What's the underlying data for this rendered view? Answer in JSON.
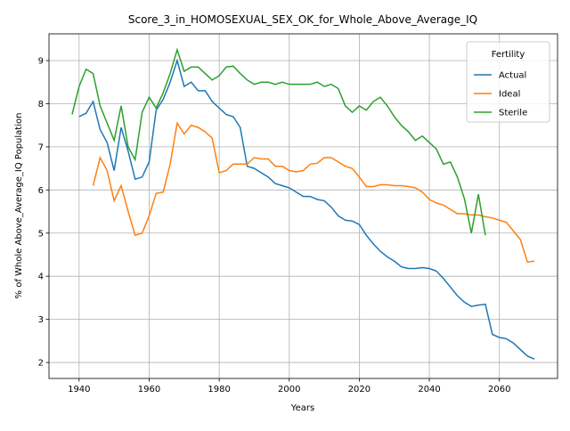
{
  "chart_data": {
    "type": "line",
    "title": "Score_3_in_HOMOSEXUAL_SEX_OK_for_Whole_Above_Average_IQ",
    "xlabel": "Years",
    "ylabel": "% of Whole Above_Average_IQ Population",
    "legend_title": "Fertility",
    "legend": "upper right",
    "grid": true,
    "x": [
      1938,
      1940,
      1942,
      1944,
      1946,
      1948,
      1950,
      1952,
      1954,
      1956,
      1958,
      1960,
      1962,
      1964,
      1966,
      1968,
      1970,
      1972,
      1974,
      1976,
      1978,
      1980,
      1982,
      1984,
      1986,
      1988,
      1990,
      1992,
      1994,
      1996,
      1998,
      2000,
      2002,
      2004,
      2006,
      2008,
      2010,
      2012,
      2014,
      2016,
      2018,
      2020,
      2022,
      2024,
      2026,
      2028,
      2030,
      2032,
      2034,
      2036,
      2038,
      2040,
      2042,
      2044,
      2046,
      2048,
      2050,
      2052,
      2054,
      2056,
      2058,
      2060,
      2062,
      2064,
      2066,
      2068,
      2070
    ],
    "series": [
      {
        "name": "Actual",
        "color": "#1f77b4",
        "values": [
          null,
          7.7,
          7.78,
          8.05,
          7.4,
          7.1,
          6.45,
          7.45,
          6.9,
          6.25,
          6.3,
          6.65,
          7.85,
          8.1,
          8.5,
          9.0,
          8.4,
          8.5,
          8.3,
          8.3,
          8.05,
          7.9,
          7.75,
          7.7,
          7.45,
          6.55,
          6.5,
          6.4,
          6.3,
          6.15,
          6.1,
          6.05,
          5.95,
          5.85,
          5.85,
          5.78,
          5.75,
          5.6,
          5.4,
          5.3,
          5.28,
          5.2,
          4.95,
          4.75,
          4.58,
          4.45,
          4.35,
          4.22,
          4.18,
          4.18,
          4.2,
          4.18,
          4.12,
          3.95,
          3.75,
          3.55,
          3.4,
          3.3,
          3.33,
          3.35,
          2.65,
          2.58,
          2.55,
          2.45,
          2.3,
          2.15,
          2.08
        ]
      },
      {
        "name": "Ideal",
        "color": "#ff7f0e",
        "values": [
          null,
          null,
          null,
          6.1,
          6.75,
          6.45,
          5.75,
          6.1,
          5.5,
          4.95,
          5.0,
          5.4,
          5.92,
          5.95,
          6.6,
          7.55,
          7.3,
          7.5,
          7.45,
          7.35,
          7.2,
          6.4,
          6.45,
          6.6,
          6.6,
          6.6,
          6.75,
          6.72,
          6.72,
          6.55,
          6.55,
          6.45,
          6.42,
          6.45,
          6.6,
          6.62,
          6.75,
          6.75,
          6.65,
          6.55,
          6.5,
          6.3,
          6.08,
          6.08,
          6.12,
          6.12,
          6.1,
          6.1,
          6.08,
          6.05,
          5.95,
          5.78,
          5.7,
          5.65,
          5.55,
          5.45,
          5.45,
          5.42,
          5.42,
          5.38,
          5.35,
          5.3,
          5.25,
          5.05,
          4.85,
          4.33,
          4.35
        ]
      },
      {
        "name": "Sterile",
        "color": "#2ca02c",
        "values": [
          7.75,
          8.4,
          8.8,
          8.7,
          7.95,
          7.55,
          7.15,
          7.95,
          7.0,
          6.7,
          7.8,
          8.15,
          7.9,
          8.25,
          8.7,
          9.25,
          8.75,
          8.85,
          8.85,
          8.7,
          8.55,
          8.65,
          8.85,
          8.87,
          8.7,
          8.55,
          8.45,
          8.5,
          8.5,
          8.45,
          8.5,
          8.45,
          8.45,
          8.45,
          8.45,
          8.5,
          8.4,
          8.45,
          8.35,
          7.95,
          7.8,
          7.95,
          7.85,
          8.05,
          8.15,
          7.95,
          7.7,
          7.5,
          7.35,
          7.15,
          7.25,
          7.1,
          6.95,
          6.6,
          6.65,
          6.3,
          5.8,
          5.0,
          5.9,
          4.95,
          null,
          null,
          null,
          null,
          null,
          null,
          null
        ]
      }
    ],
    "xlim": [
      1931.4,
      2076.6
    ],
    "xticks": [
      1940,
      1960,
      1980,
      2000,
      2020,
      2040,
      2060
    ],
    "ylim": [
      1.63,
      9.62
    ],
    "yticks": [
      2,
      3,
      4,
      5,
      6,
      7,
      8,
      9
    ]
  }
}
